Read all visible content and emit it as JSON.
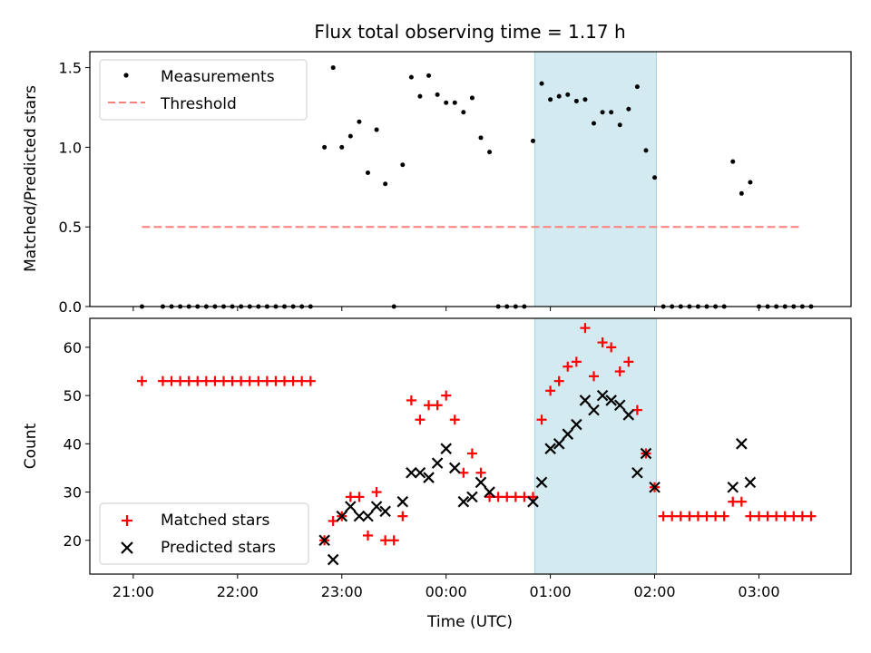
{
  "chart_data": {
    "title": "Flux total observing time = 1.17 h",
    "xlabel": "Time (UTC)",
    "x_tick_labels": [
      "21:00",
      "22:00",
      "23:00",
      "00:00",
      "01:00",
      "02:00",
      "03:00"
    ],
    "x_tick_values": [
      "21:00",
      "22:00",
      "23:00",
      "00:00",
      "01:00",
      "02:00",
      "03:00"
    ],
    "highlight": {
      "start": "00:51",
      "end": "02:01",
      "color": "#add8e6"
    },
    "colors": {
      "measurements": "#000000",
      "threshold": "#ff7f7f",
      "matched": "#ff0000",
      "predicted": "#000000",
      "highlight": "#d3eaf0"
    },
    "top": {
      "type": "scatter",
      "ylabel": "Matched/Predicted stars",
      "ylim": [
        0,
        1.6
      ],
      "y_tick_labels": [
        "0.0",
        "0.5",
        "1.0",
        "1.5"
      ],
      "y_tick_values": [
        0,
        0.5,
        1.0,
        1.5
      ],
      "legend": [
        "Measurements",
        "Threshold"
      ],
      "threshold": {
        "value": 0.5,
        "x_start": "21:05",
        "x_end": "03:25"
      },
      "measurements": [
        [
          "21:05",
          0
        ],
        [
          "21:17",
          0
        ],
        [
          "21:22",
          0
        ],
        [
          "21:27",
          0
        ],
        [
          "21:32",
          0
        ],
        [
          "21:37",
          0
        ],
        [
          "21:42",
          0
        ],
        [
          "21:47",
          0
        ],
        [
          "21:52",
          0
        ],
        [
          "21:57",
          0
        ],
        [
          "22:02",
          0
        ],
        [
          "22:07",
          0
        ],
        [
          "22:12",
          0
        ],
        [
          "22:17",
          0
        ],
        [
          "22:22",
          0
        ],
        [
          "22:27",
          0
        ],
        [
          "22:32",
          0
        ],
        [
          "22:37",
          0
        ],
        [
          "22:42",
          0
        ],
        [
          "22:50",
          1.0
        ],
        [
          "22:55",
          1.5
        ],
        [
          "23:00",
          1.0
        ],
        [
          "23:05",
          1.07
        ],
        [
          "23:10",
          1.16
        ],
        [
          "23:15",
          0.84
        ],
        [
          "23:20",
          1.11
        ],
        [
          "23:25",
          0.77
        ],
        [
          "23:30",
          0
        ],
        [
          "23:35",
          0.89
        ],
        [
          "23:40",
          1.44
        ],
        [
          "23:45",
          1.32
        ],
        [
          "23:50",
          1.45
        ],
        [
          "23:55",
          1.33
        ],
        [
          "00:00",
          1.28
        ],
        [
          "00:05",
          1.28
        ],
        [
          "00:10",
          1.22
        ],
        [
          "00:15",
          1.31
        ],
        [
          "00:20",
          1.06
        ],
        [
          "00:25",
          0.97
        ],
        [
          "00:30",
          0
        ],
        [
          "00:35",
          0
        ],
        [
          "00:40",
          0
        ],
        [
          "00:45",
          0
        ],
        [
          "00:50",
          1.04
        ],
        [
          "00:55",
          1.4
        ],
        [
          "01:00",
          1.3
        ],
        [
          "01:05",
          1.32
        ],
        [
          "01:10",
          1.33
        ],
        [
          "01:15",
          1.29
        ],
        [
          "01:20",
          1.3
        ],
        [
          "01:25",
          1.15
        ],
        [
          "01:30",
          1.22
        ],
        [
          "01:35",
          1.22
        ],
        [
          "01:40",
          1.14
        ],
        [
          "01:45",
          1.24
        ],
        [
          "01:50",
          1.38
        ],
        [
          "01:55",
          0.98
        ],
        [
          "02:00",
          0.81
        ],
        [
          "02:05",
          0
        ],
        [
          "02:10",
          0
        ],
        [
          "02:15",
          0
        ],
        [
          "02:20",
          0
        ],
        [
          "02:25",
          0
        ],
        [
          "02:30",
          0
        ],
        [
          "02:35",
          0
        ],
        [
          "02:40",
          0
        ],
        [
          "02:45",
          0.91
        ],
        [
          "02:50",
          0.71
        ],
        [
          "02:55",
          0.78
        ],
        [
          "03:00",
          0
        ],
        [
          "03:05",
          0
        ],
        [
          "03:10",
          0
        ],
        [
          "03:15",
          0
        ],
        [
          "03:20",
          0
        ],
        [
          "03:25",
          0
        ],
        [
          "03:30",
          0
        ]
      ]
    },
    "bottom": {
      "type": "scatter",
      "ylabel": "Count",
      "ylim": [
        13,
        66
      ],
      "y_tick_labels": [
        "20",
        "30",
        "40",
        "50",
        "60"
      ],
      "y_tick_values": [
        20,
        30,
        40,
        50,
        60
      ],
      "legend": [
        "Matched stars",
        "Predicted stars"
      ],
      "matched": [
        [
          "21:05",
          53
        ],
        [
          "21:17",
          53
        ],
        [
          "21:22",
          53
        ],
        [
          "21:27",
          53
        ],
        [
          "21:32",
          53
        ],
        [
          "21:37",
          53
        ],
        [
          "21:42",
          53
        ],
        [
          "21:47",
          53
        ],
        [
          "21:52",
          53
        ],
        [
          "21:57",
          53
        ],
        [
          "22:02",
          53
        ],
        [
          "22:07",
          53
        ],
        [
          "22:12",
          53
        ],
        [
          "22:17",
          53
        ],
        [
          "22:22",
          53
        ],
        [
          "22:27",
          53
        ],
        [
          "22:32",
          53
        ],
        [
          "22:37",
          53
        ],
        [
          "22:42",
          53
        ],
        [
          "22:50",
          20
        ],
        [
          "22:55",
          24
        ],
        [
          "23:00",
          25
        ],
        [
          "23:05",
          29
        ],
        [
          "23:10",
          29
        ],
        [
          "23:15",
          21
        ],
        [
          "23:20",
          30
        ],
        [
          "23:25",
          20
        ],
        [
          "23:30",
          20
        ],
        [
          "23:35",
          25
        ],
        [
          "23:40",
          49
        ],
        [
          "23:45",
          45
        ],
        [
          "23:50",
          48
        ],
        [
          "23:55",
          48
        ],
        [
          "00:00",
          50
        ],
        [
          "00:05",
          45
        ],
        [
          "00:10",
          34
        ],
        [
          "00:15",
          38
        ],
        [
          "00:20",
          34
        ],
        [
          "00:25",
          29
        ],
        [
          "00:30",
          29
        ],
        [
          "00:35",
          29
        ],
        [
          "00:40",
          29
        ],
        [
          "00:45",
          29
        ],
        [
          "00:50",
          29
        ],
        [
          "00:55",
          45
        ],
        [
          "01:00",
          51
        ],
        [
          "01:05",
          53
        ],
        [
          "01:10",
          56
        ],
        [
          "01:15",
          57
        ],
        [
          "01:20",
          64
        ],
        [
          "01:25",
          54
        ],
        [
          "01:30",
          61
        ],
        [
          "01:35",
          60
        ],
        [
          "01:40",
          55
        ],
        [
          "01:45",
          57
        ],
        [
          "01:50",
          47
        ],
        [
          "01:55",
          38
        ],
        [
          "02:00",
          31
        ],
        [
          "02:05",
          25
        ],
        [
          "02:10",
          25
        ],
        [
          "02:15",
          25
        ],
        [
          "02:20",
          25
        ],
        [
          "02:25",
          25
        ],
        [
          "02:30",
          25
        ],
        [
          "02:35",
          25
        ],
        [
          "02:40",
          25
        ],
        [
          "02:45",
          28
        ],
        [
          "02:50",
          28
        ],
        [
          "02:55",
          25
        ],
        [
          "03:00",
          25
        ],
        [
          "03:05",
          25
        ],
        [
          "03:10",
          25
        ],
        [
          "03:15",
          25
        ],
        [
          "03:20",
          25
        ],
        [
          "03:25",
          25
        ],
        [
          "03:30",
          25
        ]
      ],
      "predicted": [
        [
          "22:50",
          20
        ],
        [
          "22:55",
          16
        ],
        [
          "23:00",
          25
        ],
        [
          "23:05",
          27
        ],
        [
          "23:10",
          25
        ],
        [
          "23:15",
          25
        ],
        [
          "23:20",
          27
        ],
        [
          "23:25",
          26
        ],
        [
          "23:35",
          28
        ],
        [
          "23:40",
          34
        ],
        [
          "23:45",
          34
        ],
        [
          "23:50",
          33
        ],
        [
          "23:55",
          36
        ],
        [
          "00:00",
          39
        ],
        [
          "00:05",
          35
        ],
        [
          "00:10",
          28
        ],
        [
          "00:15",
          29
        ],
        [
          "00:20",
          32
        ],
        [
          "00:25",
          30
        ],
        [
          "00:50",
          28
        ],
        [
          "00:55",
          32
        ],
        [
          "01:00",
          39
        ],
        [
          "01:05",
          40
        ],
        [
          "01:10",
          42
        ],
        [
          "01:15",
          44
        ],
        [
          "01:20",
          49
        ],
        [
          "01:25",
          47
        ],
        [
          "01:30",
          50
        ],
        [
          "01:35",
          49
        ],
        [
          "01:40",
          48
        ],
        [
          "01:45",
          46
        ],
        [
          "01:50",
          34
        ],
        [
          "01:55",
          38
        ],
        [
          "02:00",
          31
        ],
        [
          "02:45",
          31
        ],
        [
          "02:50",
          40
        ],
        [
          "02:55",
          32
        ]
      ]
    }
  }
}
